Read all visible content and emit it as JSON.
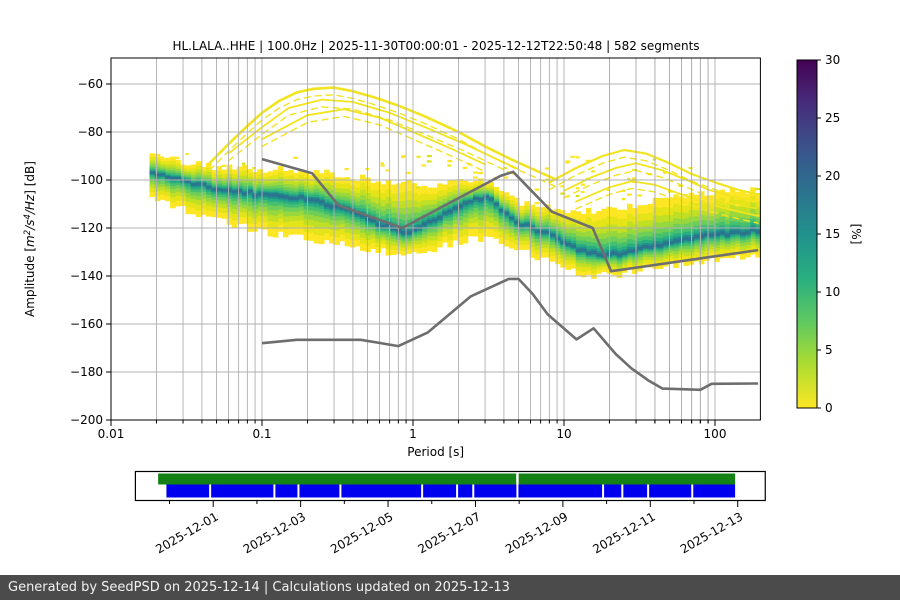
{
  "header": {
    "title": "HL.LALA..HHE | 100.0Hz | 2025-11-30T00:00:01 - 2025-12-12T22:50:48 | 582 segments"
  },
  "footer": {
    "text": "Generated by SeedPSD on 2025-12-14 | Calculations updated on 2025-12-13",
    "bg_color": "#4b4b4b"
  },
  "chart_data": {
    "type": "heatmap",
    "title": "HL.LALA..HHE | 100.0Hz | 2025-11-30T00:00:01 - 2025-12-12T22:50:48 | 582 segments",
    "xlabel": "Period [s]",
    "ylabel": "Amplitude [m²/s⁴/Hz] [dB]",
    "ylabel_parts": [
      {
        "t": "Amplitude [",
        "i": false,
        "sup": false
      },
      {
        "t": "m",
        "i": true,
        "sup": false
      },
      {
        "t": "2",
        "i": true,
        "sup": true
      },
      {
        "t": "/",
        "i": true,
        "sup": false
      },
      {
        "t": "s",
        "i": true,
        "sup": false
      },
      {
        "t": "4",
        "i": true,
        "sup": true
      },
      {
        "t": "/",
        "i": true,
        "sup": false
      },
      {
        "t": "Hz",
        "i": true,
        "sup": false
      },
      {
        "t": "] [dB]",
        "i": false,
        "sup": false
      }
    ],
    "xscale": "log",
    "xlim": [
      0.01,
      200
    ],
    "ylim": [
      -200,
      -49
    ],
    "xticks": [
      0.01,
      0.1,
      1,
      10,
      100
    ],
    "xtick_labels": [
      "0.01",
      "0.1",
      "1",
      "10",
      "100"
    ],
    "yticks": [
      -60,
      -80,
      -100,
      -120,
      -140,
      -160,
      -180,
      -200
    ],
    "grid": true,
    "grid_color": "#b0b0b0",
    "colorbar": {
      "label": "[%]",
      "min": 0,
      "max": 30,
      "ticks": [
        0,
        5,
        10,
        15,
        20,
        25,
        30
      ],
      "colormap": "viridis_r",
      "stops_bottom_to_top": [
        "#fde725",
        "#addc30",
        "#5ec962",
        "#28ae80",
        "#21918c",
        "#2c728e",
        "#3b528b",
        "#472d7b",
        "#440154"
      ]
    },
    "density_band": {
      "comment_units": "period_s, top_dB, center_dB, bottom_dB",
      "points": [
        [
          0.018,
          -89,
          -96.5,
          -108
        ],
        [
          0.03,
          -92,
          -100,
          -112
        ],
        [
          0.05,
          -94.5,
          -103.5,
          -116
        ],
        [
          0.1,
          -95.5,
          -106,
          -122
        ],
        [
          0.2,
          -96.5,
          -108,
          -124.5
        ],
        [
          0.35,
          -98,
          -112,
          -127
        ],
        [
          0.6,
          -100,
          -118.5,
          -130
        ],
        [
          0.9,
          -101.5,
          -122.5,
          -131
        ],
        [
          1.3,
          -102,
          -117.5,
          -129
        ],
        [
          2,
          -101,
          -111,
          -126
        ],
        [
          3,
          -100,
          -106.5,
          -124
        ],
        [
          4.5,
          -108,
          -116,
          -128
        ],
        [
          6,
          -110,
          -120,
          -131
        ],
        [
          8,
          -111,
          -122.5,
          -133.5
        ],
        [
          10,
          -112.5,
          -126,
          -136
        ],
        [
          14,
          -113,
          -130.5,
          -139.5
        ],
        [
          20,
          -112,
          -131.5,
          -140
        ],
        [
          30,
          -110,
          -129.5,
          -138.5
        ],
        [
          50,
          -108,
          -126.5,
          -136.5
        ],
        [
          80,
          -106,
          -124,
          -134
        ],
        [
          120,
          -105,
          -122.5,
          -132.5
        ],
        [
          193,
          -104,
          -121,
          -131.5
        ]
      ],
      "layers": [
        {
          "f": 1.0,
          "c": "#fde725"
        },
        {
          "f": 0.8,
          "c": "#e5e419"
        },
        {
          "f": 0.63,
          "c": "#c0df25"
        },
        {
          "f": 0.49,
          "c": "#99d83d"
        },
        {
          "f": 0.37,
          "c": "#6ece58"
        },
        {
          "f": 0.26,
          "c": "#46c06f"
        },
        {
          "f": 0.17,
          "c": "#28ae80"
        },
        {
          "f": 0.1,
          "c": "#21918c"
        },
        {
          "f": 0.05,
          "c": "#2b748e"
        }
      ]
    },
    "speckle_envelope": [
      [
        0.018,
        -86,
        -91
      ],
      [
        0.05,
        -90,
        -96
      ],
      [
        0.1,
        -89,
        -96
      ],
      [
        0.2,
        -88,
        -97
      ],
      [
        0.35,
        -87,
        -99
      ],
      [
        0.6,
        -88,
        -101
      ],
      [
        1,
        -89,
        -103
      ],
      [
        2,
        -90,
        -101
      ],
      [
        3,
        -92,
        -101
      ],
      [
        5,
        -94,
        -108
      ],
      [
        8,
        -92,
        -110
      ],
      [
        12,
        -89,
        -112
      ],
      [
        20,
        -86.5,
        -112
      ],
      [
        30,
        -86,
        -110
      ],
      [
        50,
        -91,
        -111
      ],
      [
        80,
        -96,
        -113
      ],
      [
        120,
        -100,
        -115
      ],
      [
        193,
        -103,
        -118
      ]
    ],
    "event_curves": [
      {
        "points": [
          [
            0.045,
            -93
          ],
          [
            0.06,
            -85
          ],
          [
            0.08,
            -77.5
          ],
          [
            0.1,
            -72
          ],
          [
            0.13,
            -67
          ],
          [
            0.17,
            -63.5
          ],
          [
            0.22,
            -62
          ],
          [
            0.3,
            -61.5
          ],
          [
            0.4,
            -63
          ],
          [
            0.55,
            -65.5
          ],
          [
            0.8,
            -69
          ],
          [
            1.2,
            -73.5
          ],
          [
            2,
            -80
          ],
          [
            3,
            -86
          ],
          [
            4.5,
            -91.5
          ],
          [
            6.5,
            -96
          ],
          [
            9,
            -100
          ]
        ],
        "w": 2.6
      },
      {
        "points": [
          [
            0.06,
            -89
          ],
          [
            0.1,
            -78
          ],
          [
            0.15,
            -70
          ],
          [
            0.25,
            -66.5
          ],
          [
            0.4,
            -67.5
          ],
          [
            0.7,
            -72
          ],
          [
            1.2,
            -78
          ],
          [
            2.2,
            -85
          ],
          [
            3.5,
            -91
          ],
          [
            5,
            -95.5
          ]
        ],
        "w": 1.8
      },
      {
        "points": [
          [
            0.1,
            -83
          ],
          [
            0.2,
            -73
          ],
          [
            0.35,
            -70.5
          ],
          [
            0.6,
            -74
          ],
          [
            1,
            -80
          ],
          [
            1.8,
            -87
          ],
          [
            3,
            -93.5
          ]
        ],
        "w": 1.8
      },
      {
        "points": [
          [
            8,
            -101
          ],
          [
            12,
            -95
          ],
          [
            18,
            -90
          ],
          [
            25,
            -87.5
          ],
          [
            35,
            -89
          ],
          [
            50,
            -93
          ],
          [
            70,
            -97.5
          ],
          [
            100,
            -101
          ],
          [
            140,
            -104
          ],
          [
            193,
            -106
          ]
        ],
        "w": 2.2
      },
      {
        "points": [
          [
            10,
            -104.5
          ],
          [
            15,
            -99
          ],
          [
            22,
            -95
          ],
          [
            30,
            -93
          ],
          [
            45,
            -96
          ],
          [
            65,
            -100
          ],
          [
            90,
            -104
          ],
          [
            130,
            -107
          ],
          [
            193,
            -109
          ]
        ],
        "w": 1.8
      },
      {
        "points": [
          [
            12,
            -109
          ],
          [
            20,
            -103
          ],
          [
            28,
            -100.5
          ],
          [
            40,
            -102
          ],
          [
            60,
            -106
          ],
          [
            90,
            -110
          ],
          [
            140,
            -113
          ],
          [
            193,
            -115
          ]
        ],
        "w": 1.8
      }
    ],
    "noise_models": {
      "color": "#6e6e6e",
      "upper": [
        [
          0.1,
          -91.3
        ],
        [
          0.215,
          -97.2
        ],
        [
          0.32,
          -110.5
        ],
        [
          0.85,
          -120
        ],
        [
          3.8,
          -98.3
        ],
        [
          4.6,
          -96.6
        ],
        [
          8.3,
          -113.2
        ],
        [
          15.5,
          -120
        ],
        [
          20.5,
          -138
        ],
        [
          193,
          -129.2
        ]
      ],
      "lower": [
        [
          0.1,
          -168
        ],
        [
          0.17,
          -166.6
        ],
        [
          0.45,
          -166.6
        ],
        [
          0.8,
          -169.2
        ],
        [
          1.25,
          -163.6
        ],
        [
          2.4,
          -148.6
        ],
        [
          4.3,
          -141.2
        ],
        [
          5.0,
          -141.2
        ],
        [
          6.2,
          -147.5
        ],
        [
          7.8,
          -156
        ],
        [
          12.1,
          -166.4
        ],
        [
          15.7,
          -161.8
        ],
        [
          22,
          -172.5
        ],
        [
          28,
          -178.5
        ],
        [
          36,
          -183.4
        ],
        [
          45,
          -186.9
        ],
        [
          80,
          -187.4
        ],
        [
          95,
          -184.9
        ],
        [
          193,
          -184.8
        ]
      ]
    }
  },
  "timeline": {
    "green_color": "#148114",
    "blue_color": "#0000ee",
    "box_days": [
      -1.78,
      12.63
    ],
    "green_days": [
      -1.26,
      11.94
    ],
    "blue_days": [
      -1.07,
      11.94
    ],
    "blue_gap_days": [
      -0.07,
      1.4,
      1.95,
      2.91,
      4.78,
      5.58,
      5.95,
      6.96,
      8.92,
      9.36,
      9.95,
      10.96
    ],
    "green_gap_days": [
      6.96
    ],
    "tick_days": [
      -1,
      0,
      1,
      2,
      3,
      4,
      5,
      6,
      7,
      8,
      9,
      10,
      11,
      12
    ],
    "major_days": [
      0,
      2,
      4,
      6,
      8,
      10,
      12
    ],
    "date_labels": [
      "2025-12-01",
      "2025-12-03",
      "2025-12-05",
      "2025-12-07",
      "2025-12-09",
      "2025-12-11",
      "2025-12-13"
    ]
  }
}
